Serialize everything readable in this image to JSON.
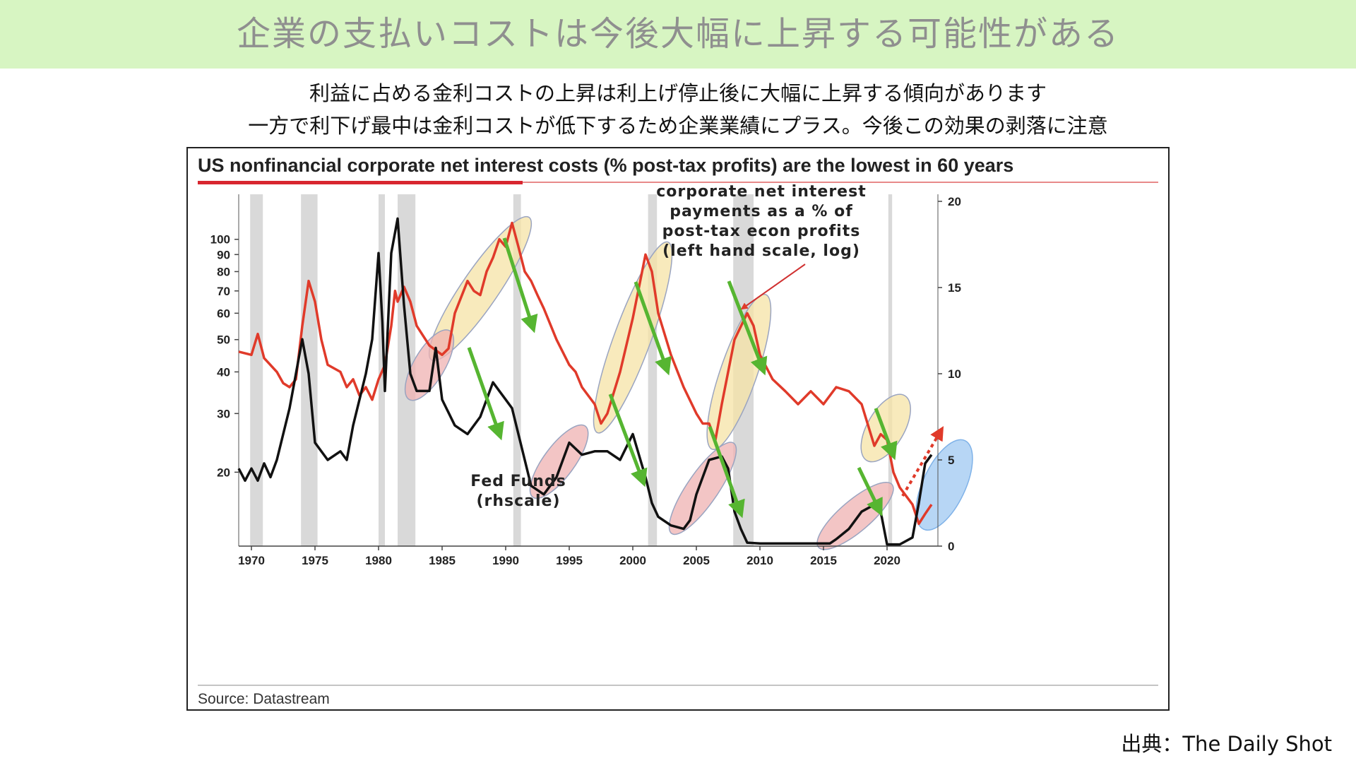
{
  "slide": {
    "title": "企業の支払いコストは今後大幅に上昇する可能性がある",
    "subtitle_lines": [
      "利益に占める金利コストの上昇は利上げ停止後に大幅に上昇する傾向があります",
      "一方で利下げ最中は金利コストが低下するため企業業績にプラス。今後この効果の剥落に注意"
    ],
    "credit": "出典：The Daily Shot"
  },
  "colors": {
    "header_bg": "#d7f5c2",
    "interest_line": "#e03a2a",
    "fed_line": "#111111",
    "recession": "#d9d9d9",
    "rise_highlight": "#f5e3a6",
    "fed_highlight": "#efb2b2",
    "arrow": "#56b531",
    "forecast_highlight": "#9fc8f2"
  },
  "chart_data": {
    "type": "line",
    "title": "US nonfinancial corporate net interest costs (% post-tax profits) are the lowest in 60 years",
    "source": "Source: Datastream",
    "x_ticks": [
      1970,
      1975,
      1980,
      1985,
      1990,
      1995,
      2000,
      2005,
      2010,
      2015,
      2020
    ],
    "xlim": [
      1969,
      2024
    ],
    "y_left": {
      "scale": "log",
      "range": [
        12,
        130
      ],
      "ticks": [
        20,
        30,
        40,
        50,
        60,
        70,
        80,
        90,
        100
      ]
    },
    "y_right": {
      "scale": "linear",
      "range": [
        0,
        20
      ],
      "ticks": [
        0,
        5,
        10,
        15,
        20
      ]
    },
    "annotations": [
      {
        "text_lines": [
          "corporate net interest",
          "payments as a % of",
          "post-tax econ profits",
          "(left hand scale, log)"
        ],
        "target": "interest"
      },
      {
        "text_lines": [
          "Fed Funds",
          "(rhscale)"
        ],
        "target": "fed"
      }
    ],
    "recessions": [
      [
        1969.9,
        1970.9
      ],
      [
        1973.9,
        1975.2
      ],
      [
        1980.0,
        1980.5
      ],
      [
        1981.5,
        1982.9
      ],
      [
        1990.6,
        1991.2
      ],
      [
        2001.2,
        2001.9
      ],
      [
        2007.9,
        2009.5
      ],
      [
        2020.1,
        2020.4
      ]
    ],
    "series": [
      {
        "name": "corporate net interest payments as a % of post-tax econ profits (left hand scale, log)",
        "axis": "left",
        "points": [
          [
            1969,
            46
          ],
          [
            1970,
            45
          ],
          [
            1970.5,
            52
          ],
          [
            1971,
            44
          ],
          [
            1972,
            40
          ],
          [
            1972.5,
            37
          ],
          [
            1973,
            36
          ],
          [
            1973.5,
            38
          ],
          [
            1974,
            55
          ],
          [
            1974.5,
            75
          ],
          [
            1975,
            65
          ],
          [
            1975.5,
            50
          ],
          [
            1976,
            42
          ],
          [
            1977,
            40
          ],
          [
            1977.5,
            36
          ],
          [
            1978,
            38
          ],
          [
            1978.5,
            34
          ],
          [
            1979,
            36
          ],
          [
            1979.5,
            33
          ],
          [
            1980,
            38
          ],
          [
            1980.5,
            42
          ],
          [
            1981,
            55
          ],
          [
            1981.3,
            70
          ],
          [
            1981.5,
            65
          ],
          [
            1982,
            72
          ],
          [
            1982.5,
            65
          ],
          [
            1983,
            55
          ],
          [
            1984,
            48
          ],
          [
            1985,
            45
          ],
          [
            1985.5,
            47
          ],
          [
            1986,
            60
          ],
          [
            1987,
            75
          ],
          [
            1987.5,
            70
          ],
          [
            1988,
            68
          ],
          [
            1988.5,
            80
          ],
          [
            1989,
            88
          ],
          [
            1989.5,
            100
          ],
          [
            1990,
            95
          ],
          [
            1990.5,
            112
          ],
          [
            1991,
            95
          ],
          [
            1991.5,
            80
          ],
          [
            1992,
            75
          ],
          [
            1992.5,
            68
          ],
          [
            1993,
            62
          ],
          [
            1994,
            50
          ],
          [
            1995,
            42
          ],
          [
            1995.5,
            40
          ],
          [
            1996,
            36
          ],
          [
            1997,
            32
          ],
          [
            1997.5,
            28
          ],
          [
            1998,
            30
          ],
          [
            1999,
            40
          ],
          [
            2000,
            58
          ],
          [
            2001,
            90
          ],
          [
            2001.5,
            80
          ],
          [
            2002,
            60
          ],
          [
            2003,
            45
          ],
          [
            2004,
            36
          ],
          [
            2005,
            30
          ],
          [
            2005.5,
            28
          ],
          [
            2006,
            28
          ],
          [
            2006.5,
            25
          ],
          [
            2007,
            32
          ],
          [
            2008,
            50
          ],
          [
            2009,
            60
          ],
          [
            2009.5,
            55
          ],
          [
            2010,
            45
          ],
          [
            2011,
            38
          ],
          [
            2012,
            35
          ],
          [
            2013,
            32
          ],
          [
            2014,
            35
          ],
          [
            2015,
            32
          ],
          [
            2016,
            36
          ],
          [
            2017,
            35
          ],
          [
            2018,
            32
          ],
          [
            2019,
            24
          ],
          [
            2019.5,
            26
          ],
          [
            2020,
            25
          ],
          [
            2020.5,
            20
          ],
          [
            2021,
            18
          ],
          [
            2022,
            16
          ],
          [
            2022.5,
            14
          ],
          [
            2023,
            15
          ],
          [
            2023.5,
            16
          ]
        ]
      },
      {
        "name": "Fed Funds (rhscale)",
        "axis": "right",
        "points": [
          [
            1969,
            4.5
          ],
          [
            1969.5,
            3.8
          ],
          [
            1970,
            4.5
          ],
          [
            1970.5,
            3.8
          ],
          [
            1971,
            4.8
          ],
          [
            1971.5,
            4
          ],
          [
            1972,
            5
          ],
          [
            1973,
            8
          ],
          [
            1973.5,
            10
          ],
          [
            1974,
            12
          ],
          [
            1974.5,
            10
          ],
          [
            1975,
            6
          ],
          [
            1975.5,
            5.5
          ],
          [
            1976,
            5
          ],
          [
            1977,
            5.5
          ],
          [
            1977.5,
            5
          ],
          [
            1978,
            7
          ],
          [
            1979,
            10
          ],
          [
            1979.5,
            12
          ],
          [
            1980,
            17
          ],
          [
            1980.3,
            13
          ],
          [
            1980.5,
            9
          ],
          [
            1981,
            17
          ],
          [
            1981.5,
            19
          ],
          [
            1982,
            14
          ],
          [
            1982.5,
            10
          ],
          [
            1983,
            9
          ],
          [
            1984,
            9
          ],
          [
            1984.5,
            11.5
          ],
          [
            1985,
            8.5
          ],
          [
            1986,
            7
          ],
          [
            1987,
            6.5
          ],
          [
            1988,
            7.5
          ],
          [
            1989,
            9.5
          ],
          [
            1989.5,
            9
          ],
          [
            1990,
            8.5
          ],
          [
            1990.5,
            8
          ],
          [
            1991,
            6.5
          ],
          [
            1992,
            3.5
          ],
          [
            1993,
            3
          ],
          [
            1994,
            4
          ],
          [
            1995,
            6
          ],
          [
            1996,
            5.3
          ],
          [
            1997,
            5.5
          ],
          [
            1998,
            5.5
          ],
          [
            1999,
            5
          ],
          [
            2000,
            6.5
          ],
          [
            2001,
            4
          ],
          [
            2001.5,
            2.5
          ],
          [
            2002,
            1.7
          ],
          [
            2003,
            1.2
          ],
          [
            2004,
            1
          ],
          [
            2004.5,
            1.5
          ],
          [
            2005,
            3
          ],
          [
            2006,
            5
          ],
          [
            2007,
            5.2
          ],
          [
            2007.5,
            4.5
          ],
          [
            2008,
            2
          ],
          [
            2008.5,
            1
          ],
          [
            2009,
            0.2
          ],
          [
            2010,
            0.15
          ],
          [
            2012,
            0.15
          ],
          [
            2014,
            0.15
          ],
          [
            2015.5,
            0.15
          ],
          [
            2016,
            0.4
          ],
          [
            2017,
            1
          ],
          [
            2018,
            2
          ],
          [
            2019,
            2.4
          ],
          [
            2019.5,
            2
          ],
          [
            2020,
            0.1
          ],
          [
            2021,
            0.1
          ],
          [
            2022,
            0.5
          ],
          [
            2022.5,
            2.5
          ],
          [
            2023,
            4.8
          ],
          [
            2023.5,
            5.3
          ]
        ]
      }
    ]
  }
}
